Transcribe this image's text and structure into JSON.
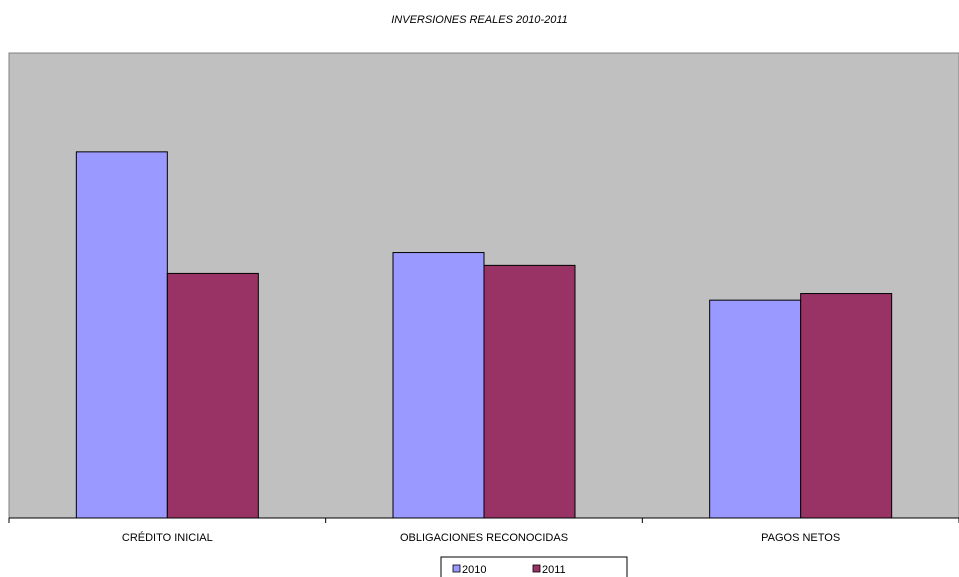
{
  "chart_data": {
    "type": "bar",
    "title": "INVERSIONES REALES 2010-2011",
    "categories": [
      "CRÉDITO INICIAL",
      "OBLIGACIONES RECONOCIDAS",
      "PAGOS NETOS"
    ],
    "series": [
      {
        "name": "2010",
        "values": [
          100,
          72.5,
          59.5
        ],
        "color": "#9999ff"
      },
      {
        "name": "2011",
        "values": [
          66.8,
          69,
          61.3
        ],
        "color": "#993366"
      }
    ],
    "ylim": [
      0,
      127
    ],
    "grid": false,
    "legend": "bottom",
    "plot_background": "#c0c0c0"
  }
}
